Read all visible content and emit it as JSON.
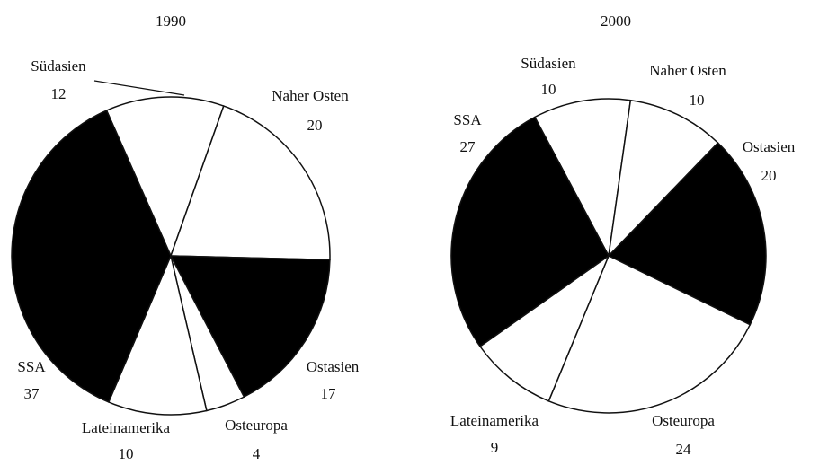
{
  "chart_data": [
    {
      "type": "pie",
      "title": "1990",
      "categories": [
        "Südasien",
        "Naher Osten",
        "Ostasien",
        "Osteuropa",
        "Lateinamerika",
        "SSA"
      ],
      "values": [
        12,
        20,
        17,
        4,
        10,
        37
      ],
      "colors": [
        "#ffffff",
        "#ffffff",
        "#000000",
        "#ffffff",
        "#ffffff",
        "#000000"
      ]
    },
    {
      "type": "pie",
      "title": "2000",
      "categories": [
        "Südasien",
        "Naher Osten",
        "Ostasien",
        "Osteuropa",
        "Lateinamerika",
        "SSA"
      ],
      "values": [
        10,
        10,
        20,
        24,
        9,
        27
      ],
      "colors": [
        "#ffffff",
        "#ffffff",
        "#000000",
        "#ffffff",
        "#ffffff",
        "#000000"
      ]
    }
  ]
}
